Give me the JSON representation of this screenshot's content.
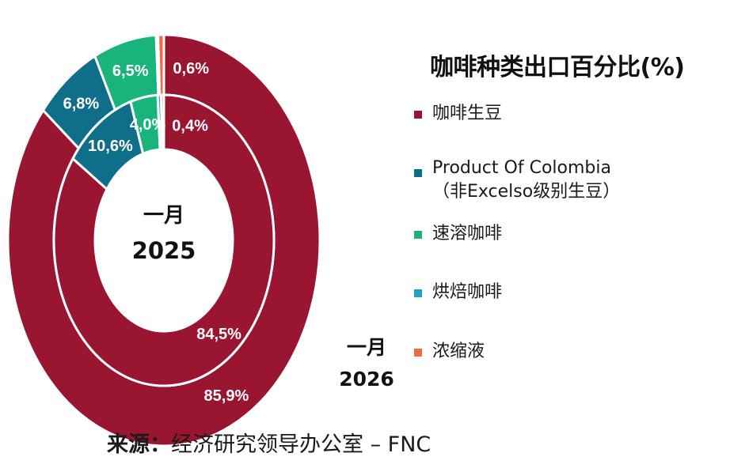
{
  "chart_data": {
    "type": "donut",
    "title": "咖啡种类出口百分比(%)",
    "inner_ring": {
      "period_label": "一月",
      "year": "2025",
      "values": [
        {
          "category": "咖啡生豆",
          "value": 84.5,
          "label": "84,5%"
        },
        {
          "category": "Product Of Colombia",
          "value": 10.6,
          "label": "10,6%"
        },
        {
          "category": "速溶咖啡",
          "value": 4.0,
          "label": "4,0%"
        },
        {
          "category": "烘焙咖啡",
          "value": 0.5,
          "label": ""
        },
        {
          "category": "浓缩液",
          "value": 0.4,
          "label": "0,4%"
        }
      ]
    },
    "outer_ring": {
      "period_label": "一月",
      "year": "2026",
      "values": [
        {
          "category": "咖啡生豆",
          "value": 85.9,
          "label": "85,9%"
        },
        {
          "category": "Product Of Colombia",
          "value": 6.8,
          "label": "6,8%"
        },
        {
          "category": "速溶咖啡",
          "value": 6.5,
          "label": "6,5%"
        },
        {
          "category": "烘焙咖啡",
          "value": 0.2,
          "label": ""
        },
        {
          "category": "浓缩液",
          "value": 0.6,
          "label": "0,6%"
        }
      ]
    },
    "legend": [
      {
        "label": "咖啡生豆",
        "sub": "",
        "color": "#9a1530"
      },
      {
        "label": "Product Of Colombia",
        "sub": "（非Excelso级别生豆）",
        "color": "#0f6f8a"
      },
      {
        "label": "速溶咖啡",
        "sub": "",
        "color": "#18b47c"
      },
      {
        "label": "烘焙咖啡",
        "sub": "",
        "color": "#1ea5c6"
      },
      {
        "label": "浓缩液",
        "sub": "",
        "color": "#ef6a4a"
      }
    ],
    "legend_position": "right",
    "label_colors": {
      "咖啡生豆": "#ffffff",
      "Product Of Colombia": "#ffffff",
      "速溶咖啡": "#ffffff",
      "烘焙咖啡": "#ffffff",
      "浓缩液": "#ffffff"
    }
  },
  "source": {
    "label": "来源：",
    "text": "经济研究领导办公室 – FNC"
  }
}
